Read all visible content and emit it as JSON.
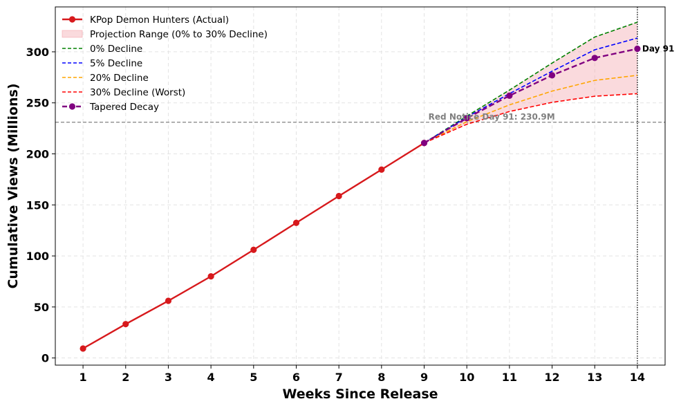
{
  "chart_data": {
    "type": "line",
    "xlabel": "Weeks Since Release",
    "ylabel": "Cumulative Views (Millions)",
    "x_ticks": [
      1,
      2,
      3,
      4,
      5,
      6,
      7,
      8,
      9,
      10,
      11,
      12,
      13,
      14
    ],
    "y_ticks": [
      0,
      50,
      100,
      150,
      200,
      250,
      300
    ],
    "xlim": [
      0.35,
      14.65
    ],
    "ylim": [
      -7,
      344
    ],
    "grid": true,
    "legend_position": "top-left",
    "series": [
      {
        "name": "KPop Demon Hunters (Actual)",
        "color": "#d7191c",
        "style": "solid-marker",
        "x": [
          1,
          2,
          3,
          4,
          5,
          6,
          7,
          8,
          9
        ],
        "y": [
          9.3,
          33.2,
          56.0,
          80.0,
          106.0,
          132.4,
          158.7,
          184.6,
          210.7
        ]
      },
      {
        "name": "0% Decline",
        "color": "#008000",
        "style": "dashed",
        "x": [
          9,
          10,
          11,
          12,
          13,
          14
        ],
        "y": [
          210.7,
          237.0,
          262.5,
          289.0,
          314.5,
          329.0
        ]
      },
      {
        "name": "5% Decline",
        "color": "#0000ff",
        "style": "dashed",
        "x": [
          9,
          10,
          11,
          12,
          13,
          14
        ],
        "y": [
          210.7,
          236.0,
          259.0,
          281.0,
          302.0,
          313.5
        ]
      },
      {
        "name": "20% Decline",
        "color": "#ffa500",
        "style": "dashed",
        "x": [
          9,
          10,
          11,
          12,
          13,
          14
        ],
        "y": [
          210.7,
          231.5,
          248.0,
          261.5,
          272.0,
          277.0
        ]
      },
      {
        "name": "30% Decline (Worst)",
        "color": "#ff0000",
        "style": "dashed",
        "x": [
          9,
          10,
          11,
          12,
          13,
          14
        ],
        "y": [
          210.7,
          229.0,
          241.5,
          250.5,
          256.5,
          259.0
        ]
      },
      {
        "name": "Tapered Decay",
        "color": "#800080",
        "style": "dashed-marker",
        "x": [
          9,
          10,
          11,
          12,
          13,
          14
        ],
        "y": [
          210.7,
          235.0,
          257.0,
          277.0,
          294.0,
          303.0
        ]
      }
    ],
    "projection_range": {
      "name": "Projection Range (0% to 30% Decline)",
      "color": "#f4a6ad",
      "upper": "0% Decline",
      "lower": "30% Decline (Worst)"
    },
    "reference_line": {
      "y": 231.0,
      "label": "Red Notice Day 91: 230.9M",
      "color": "#808080"
    },
    "vertical_marker": {
      "x": 14,
      "label": "Day 91"
    },
    "legend_order": [
      "KPop Demon Hunters (Actual)",
      "Projection Range (0% to 30% Decline)",
      "0% Decline",
      "5% Decline",
      "20% Decline",
      "30% Decline (Worst)",
      "Tapered Decay"
    ]
  }
}
